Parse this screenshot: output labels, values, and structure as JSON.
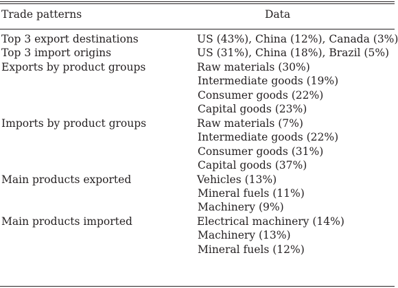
{
  "header": {
    "col1": "Trade patterns",
    "col2": "Data"
  },
  "rows": [
    {
      "label": "Top 3 export destinations",
      "values": [
        "US (43%), China (12%), Canada (3%)"
      ]
    },
    {
      "label": "Top 3 import origins",
      "values": [
        "US (31%), China (18%), Brazil (5%)"
      ]
    },
    {
      "label": "Exports by product groups",
      "values": [
        "Raw materials (30%)",
        "Intermediate goods (19%)",
        "Consumer goods (22%)",
        "Capital goods (23%)"
      ]
    },
    {
      "label": "Imports by product groups",
      "values": [
        "Raw materials (7%)",
        "Intermediate goods (22%)",
        "Consumer goods (31%)",
        "Capital goods (37%)"
      ]
    },
    {
      "label": "Main products exported",
      "values": [
        "Vehicles (13%)",
        "Mineral fuels (11%)",
        "Machinery (9%)"
      ]
    },
    {
      "label": "Main products imported",
      "values": [
        "Electrical machinery (14%)",
        "Machinery (13%)",
        "Mineral fuels (12%)"
      ]
    }
  ]
}
